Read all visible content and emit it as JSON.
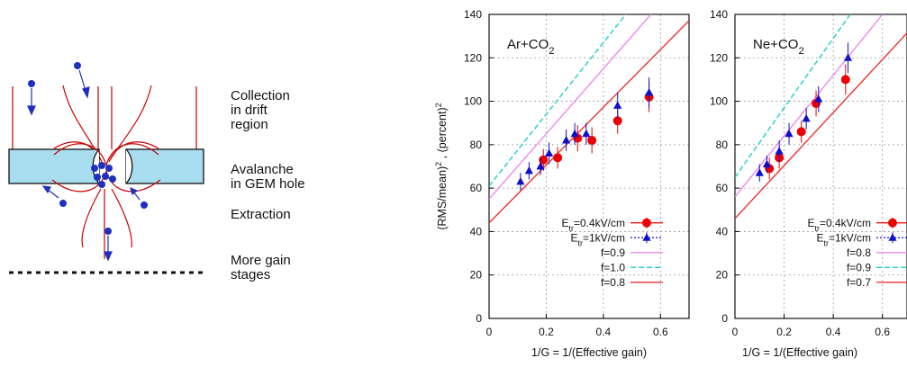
{
  "schematic": {
    "labels": [
      "Collection\nin drift\nregion",
      "Avalanche\nin GEM hole",
      "Extraction",
      "More gain\nstages"
    ]
  },
  "chart_data": [
    {
      "type": "scatter",
      "title": "Ar+CO2",
      "xlabel": "1/G = 1/(Effective gain)",
      "ylabel": "(RMS/mean)^2 , (percent)^2",
      "xlim": [
        0,
        0.7
      ],
      "ylim": [
        0,
        140
      ],
      "xticks": [
        "0",
        "0.2",
        "0.4",
        "0.6"
      ],
      "yticks": [
        "0",
        "20",
        "40",
        "60",
        "80",
        "100",
        "120",
        "140"
      ],
      "grid": true,
      "legend_position": "bottom-right",
      "series": [
        {
          "name": "Etr=0.4kV/cm",
          "marker": "circle",
          "color": "#ee0000",
          "points": [
            [
              0.19,
              73,
              5
            ],
            [
              0.24,
              74,
              5
            ],
            [
              0.31,
              83,
              6
            ],
            [
              0.36,
              82,
              6
            ],
            [
              0.45,
              91,
              6
            ],
            [
              0.56,
              102,
              7
            ]
          ]
        },
        {
          "name": "Etr=1kV/cm",
          "marker": "triangle",
          "color": "#1010cc",
          "points": [
            [
              0.11,
              63,
              4
            ],
            [
              0.14,
              68,
              4
            ],
            [
              0.18,
              70,
              4
            ],
            [
              0.21,
              76,
              5
            ],
            [
              0.27,
              82,
              5
            ],
            [
              0.3,
              85,
              5
            ],
            [
              0.34,
              85,
              5
            ],
            [
              0.45,
              98,
              6
            ],
            [
              0.56,
              104,
              7
            ]
          ]
        }
      ],
      "lines": [
        {
          "name": "f=0.9",
          "color": "#ee88ee",
          "dash": "solid",
          "intercept": 55,
          "slope": 150
        },
        {
          "name": "f=1.0",
          "color": "#22cccc",
          "dash": "dashed",
          "intercept": 61,
          "slope": 165
        },
        {
          "name": "f=0.8",
          "color": "#ee3333",
          "dash": "solid",
          "intercept": 44,
          "slope": 133
        }
      ]
    },
    {
      "type": "scatter",
      "title": "Ne+CO2",
      "xlabel": "1/G = 1/(Effective gain)",
      "ylabel": "",
      "xlim": [
        0,
        0.7
      ],
      "ylim": [
        0,
        140
      ],
      "xticks": [
        "0",
        "0.2",
        "0.4",
        "0.6"
      ],
      "yticks": [
        "0",
        "20",
        "40",
        "60",
        "80",
        "100",
        "120",
        "140"
      ],
      "grid": true,
      "legend_position": "bottom-right",
      "series": [
        {
          "name": "Etr=0.4kV/cm",
          "marker": "circle",
          "color": "#ee0000",
          "points": [
            [
              0.14,
              69,
              5
            ],
            [
              0.18,
              74,
              5
            ],
            [
              0.27,
              86,
              5
            ],
            [
              0.33,
              99,
              6
            ],
            [
              0.45,
              110,
              7
            ]
          ]
        },
        {
          "name": "Etr=1kV/cm",
          "marker": "triangle",
          "color": "#1010cc",
          "points": [
            [
              0.1,
              67,
              4
            ],
            [
              0.13,
              71,
              4
            ],
            [
              0.18,
              77,
              5
            ],
            [
              0.22,
              85,
              5
            ],
            [
              0.29,
              92,
              5
            ],
            [
              0.34,
              101,
              6
            ],
            [
              0.46,
              120,
              7
            ]
          ]
        }
      ],
      "lines": [
        {
          "name": "f=0.8",
          "color": "#ee88ee",
          "dash": "solid",
          "intercept": 56,
          "slope": 140
        },
        {
          "name": "f=0.9",
          "color": "#22cccc",
          "dash": "dashed",
          "intercept": 65,
          "slope": 160
        },
        {
          "name": "f=0.7",
          "color": "#ee3333",
          "dash": "solid",
          "intercept": 46,
          "slope": 122
        }
      ]
    }
  ]
}
